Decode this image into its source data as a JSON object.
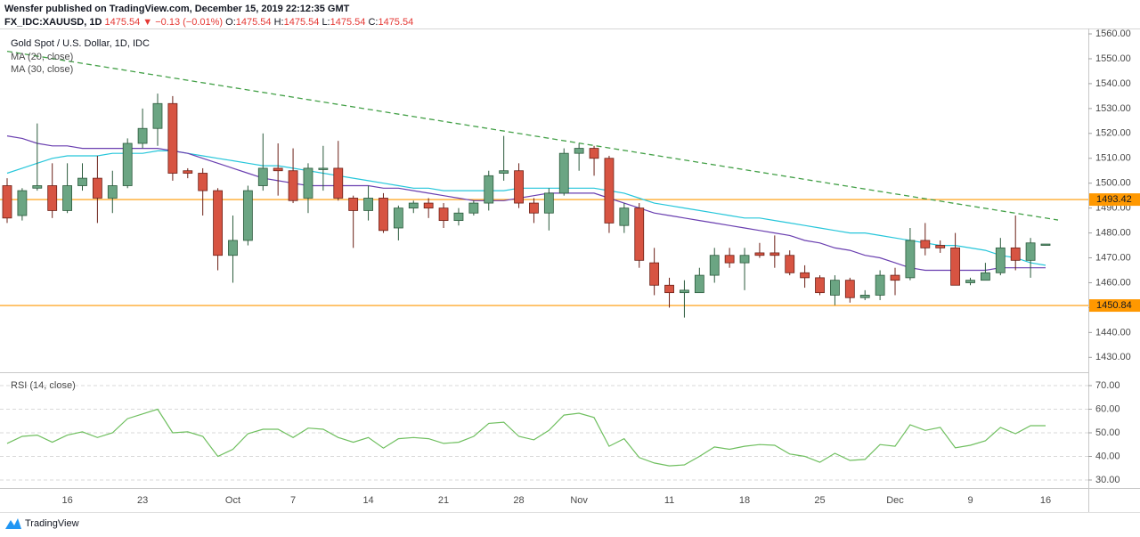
{
  "header": {
    "published": "Wensfer published on TradingView.com, December 15, 2019 22:12:35 GMT",
    "symbol": "FX_IDC:XAUUSD, 1D",
    "last": "1475.54",
    "arrow": "▼",
    "change": "−0.13 (−0.01%)",
    "ohlc": [
      {
        "label": "O:",
        "value": "1475.54"
      },
      {
        "label": "H:",
        "value": "1475.54"
      },
      {
        "label": "L:",
        "value": "1475.54"
      },
      {
        "label": "C:",
        "value": "1475.54"
      }
    ]
  },
  "footer": {
    "brand": "TradingView"
  },
  "chart_data": [
    {
      "type": "candlestick",
      "title": "Gold Spot / U.S. Dollar, 1D, IDC",
      "categories": [
        null,
        null,
        null,
        null,
        "16",
        null,
        null,
        null,
        null,
        "23",
        null,
        null,
        null,
        null,
        null,
        "Oct",
        null,
        null,
        null,
        "7",
        null,
        null,
        null,
        null,
        "14",
        null,
        null,
        null,
        null,
        "21",
        null,
        null,
        null,
        null,
        "28",
        null,
        null,
        null,
        "Nov",
        null,
        null,
        null,
        null,
        null,
        "11",
        null,
        null,
        null,
        null,
        "18",
        null,
        null,
        null,
        null,
        "25",
        null,
        null,
        null,
        null,
        "Dec",
        null,
        null,
        null,
        null,
        "9",
        null,
        null,
        null,
        null,
        "16"
      ],
      "open": [
        1499,
        1487,
        1498,
        1499,
        1489,
        1499,
        1502,
        1494,
        1499,
        1516,
        1522,
        1532,
        1505,
        1504,
        1497,
        1471,
        1477,
        1499,
        1506,
        1505,
        1494,
        1506,
        1506,
        1494,
        1489,
        1494,
        1482,
        1490,
        1492,
        1490,
        1485,
        1488,
        1492,
        1504,
        1505,
        1492,
        1488,
        1496,
        1512,
        1514,
        1510,
        1483,
        1490,
        1468,
        1459,
        1456,
        1456,
        1463,
        1471,
        1468,
        1472,
        1472,
        1471,
        1464,
        1462,
        1455,
        1461,
        1454,
        1455,
        1463,
        1462,
        1477,
        1475,
        1474,
        1460,
        1461,
        1464,
        1474,
        1469,
        1475.54
      ],
      "high": [
        1502,
        1498,
        1524,
        1508,
        1508,
        1508,
        1511,
        1505,
        1518,
        1530,
        1536,
        1535,
        1506,
        1506,
        1498,
        1487,
        1499,
        1520,
        1516,
        1514,
        1508,
        1515,
        1517,
        1495,
        1499,
        1496,
        1491,
        1493,
        1494,
        1492,
        1490,
        1493,
        1505,
        1519,
        1508,
        1494,
        1498,
        1514,
        1516,
        1515,
        1511,
        1492,
        1492,
        1474,
        1462,
        1461,
        1466,
        1474,
        1474,
        1474,
        1476,
        1479,
        1473,
        1467,
        1463,
        1463,
        1462,
        1457,
        1465,
        1466,
        1482,
        1484,
        1477,
        1480,
        1462,
        1468,
        1478,
        1487,
        1478,
        1475.54
      ],
      "low": [
        1484,
        1485,
        1497,
        1486,
        1488,
        1497,
        1484,
        1488,
        1498,
        1514,
        1515,
        1501,
        1502,
        1487,
        1465,
        1460,
        1475,
        1497,
        1495,
        1492,
        1488,
        1497,
        1493,
        1474,
        1485,
        1480,
        1477,
        1488,
        1486,
        1482,
        1483,
        1487,
        1489,
        1501,
        1490,
        1484,
        1481,
        1495,
        1505,
        1503,
        1480,
        1480,
        1466,
        1455,
        1450,
        1446,
        1456,
        1460,
        1466,
        1457,
        1470,
        1466,
        1463,
        1458,
        1455,
        1451,
        1452,
        1453,
        1453,
        1455,
        1461,
        1471,
        1472,
        1459,
        1459,
        1461,
        1463,
        1465,
        1462,
        1475.54
      ],
      "close": [
        1486,
        1497,
        1499,
        1489,
        1499,
        1502,
        1494,
        1499,
        1516,
        1522,
        1532,
        1504,
        1504,
        1497,
        1471,
        1477,
        1497,
        1506,
        1505,
        1493,
        1506,
        1506,
        1494,
        1489,
        1494,
        1481,
        1490,
        1492,
        1490,
        1485,
        1488,
        1492,
        1503,
        1505,
        1492,
        1488,
        1496,
        1512,
        1514,
        1510,
        1484,
        1490,
        1469,
        1459,
        1456,
        1457,
        1463,
        1471,
        1468,
        1471,
        1471,
        1471,
        1464,
        1462,
        1456,
        1461,
        1454,
        1455,
        1463,
        1461,
        1477,
        1474,
        1474,
        1459,
        1461,
        1464,
        1474,
        1469,
        1476,
        1475.54
      ],
      "up_color": "#6ba583",
      "down_color": "#d75442",
      "series": [
        {
          "name": "MA (20, close)",
          "color": "#26c6da",
          "values": [
            1504,
            1506,
            1508,
            1510,
            1511,
            1511,
            1511,
            1512,
            1512,
            1512,
            1513,
            1513,
            1512,
            1511,
            1510,
            1509,
            1508,
            1507,
            1507,
            1506,
            1505,
            1504,
            1503,
            1502,
            1501,
            1500,
            1499,
            1498,
            1498,
            1497,
            1497,
            1497,
            1497,
            1497,
            1498,
            1498,
            1498,
            1498,
            1498,
            1498,
            1497,
            1496,
            1494,
            1492,
            1491,
            1490,
            1489,
            1488,
            1487,
            1486,
            1486,
            1485,
            1484,
            1483,
            1482,
            1481,
            1480,
            1480,
            1479,
            1478,
            1477,
            1476,
            1475,
            1475,
            1474,
            1473,
            1471,
            1470,
            1468,
            1467
          ]
        },
        {
          "name": "MA (30, close)",
          "color": "#6a3fb0",
          "values": [
            1519,
            1518,
            1516,
            1515,
            1515,
            1514,
            1514,
            1514,
            1514,
            1514,
            1514,
            1513,
            1512,
            1510,
            1508,
            1506,
            1504,
            1502,
            1501,
            1500,
            1499,
            1499,
            1499,
            1499,
            1499,
            1498,
            1498,
            1497,
            1496,
            1495,
            1494,
            1493,
            1493,
            1493,
            1494,
            1495,
            1496,
            1496,
            1496,
            1496,
            1494,
            1492,
            1490,
            1488,
            1487,
            1486,
            1485,
            1484,
            1483,
            1482,
            1481,
            1480,
            1479,
            1477,
            1476,
            1474,
            1473,
            1471,
            1470,
            1468,
            1466,
            1465,
            1465,
            1465,
            1465,
            1465,
            1466,
            1466,
            1466,
            1466
          ]
        }
      ],
      "hlines": [
        {
          "value": 1493.42,
          "color": "#ff9800"
        },
        {
          "value": 1450.84,
          "color": "#ff9800"
        }
      ],
      "trend_line": {
        "values": [
          1553,
          1486
        ],
        "color": "#43a047"
      },
      "ylim": [
        1425.1,
        1561.8
      ],
      "yticks": [
        {
          "value": 1430,
          "label": "1430.00"
        },
        {
          "value": 1440,
          "label": "1440.00"
        },
        {
          "value": 1450,
          "label": "1450.00"
        },
        {
          "value": 1460,
          "label": "1460.00"
        },
        {
          "value": 1470,
          "label": "1470.00"
        },
        {
          "value": 1480,
          "label": "1480.00"
        },
        {
          "value": 1490,
          "label": "1490.00"
        },
        {
          "value": 1500,
          "label": "1500.00"
        },
        {
          "value": 1510,
          "label": "1510.00"
        },
        {
          "value": 1520,
          "label": "1520.00"
        },
        {
          "value": 1530,
          "label": "1530.00"
        },
        {
          "value": 1540,
          "label": "1540.00"
        },
        {
          "value": 1550,
          "label": "1550.00"
        },
        {
          "value": 1560,
          "label": "1560.00"
        }
      ],
      "grid": false
    },
    {
      "type": "line",
      "title": "RSI (14, close)",
      "series": [
        {
          "name": "RSI",
          "color": "#6fbf5f",
          "values": [
            45.5,
            48.5,
            49,
            46,
            49,
            50.4,
            48,
            50,
            56,
            58,
            60,
            50,
            50.4,
            48.5,
            40,
            43,
            49.6,
            51.5,
            51.5,
            48,
            52,
            51.5,
            48,
            46,
            48,
            43.5,
            47.5,
            48,
            47.5,
            45.5,
            46,
            48.5,
            54,
            54.5,
            48.5,
            47,
            51,
            57.5,
            58.3,
            56.5,
            44.3,
            47.5,
            39.5,
            37.2,
            36,
            36.4,
            40,
            44,
            43,
            44.3,
            45,
            44.7,
            41,
            40,
            37.5,
            41.3,
            38.3,
            38.7,
            45,
            44.3,
            53.4,
            51,
            52.3,
            43.6,
            44.7,
            46.6,
            52.3,
            49.6,
            53,
            53
          ]
        }
      ],
      "ylim": [
        26.6,
        74.9
      ],
      "yticks": [
        {
          "value": 30,
          "label": "30.00"
        },
        {
          "value": 40,
          "label": "40.00"
        },
        {
          "value": 50,
          "label": "50.00"
        },
        {
          "value": 60,
          "label": "60.00"
        },
        {
          "value": 70,
          "label": "70.00"
        }
      ],
      "grid": true
    }
  ]
}
